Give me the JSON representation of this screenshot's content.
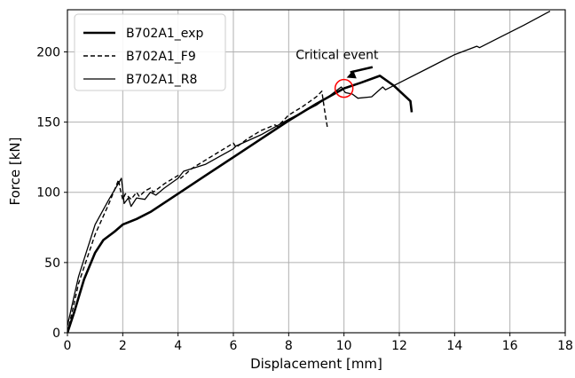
{
  "chart_data": {
    "type": "line",
    "title": "",
    "xlabel": "Displacement [mm]",
    "ylabel": "Force [kN]",
    "xlim": [
      0,
      18
    ],
    "ylim": [
      0,
      230
    ],
    "xticks": [
      0,
      2,
      4,
      6,
      8,
      10,
      12,
      14,
      16,
      18
    ],
    "yticks": [
      0,
      50,
      100,
      150,
      200
    ],
    "grid": true,
    "legend_position": "top-left",
    "series": [
      {
        "name": "B702A1_exp",
        "style": "solid-thick",
        "color": "#000000",
        "points": [
          [
            0,
            0
          ],
          [
            0.25,
            15
          ],
          [
            0.6,
            38
          ],
          [
            1.0,
            57
          ],
          [
            1.3,
            66
          ],
          [
            1.7,
            72
          ],
          [
            2.0,
            77
          ],
          [
            2.5,
            81
          ],
          [
            3.0,
            86
          ],
          [
            4.0,
            99
          ],
          [
            5.0,
            112
          ],
          [
            6.0,
            125
          ],
          [
            7.0,
            138
          ],
          [
            8.0,
            151
          ],
          [
            9.0,
            163
          ],
          [
            10.0,
            174
          ],
          [
            10.6,
            178
          ],
          [
            11.3,
            183
          ],
          [
            11.8,
            176
          ],
          [
            12.4,
            165
          ],
          [
            12.45,
            157
          ]
        ]
      },
      {
        "name": "B702A1_F9",
        "style": "dashed",
        "color": "#000000",
        "points": [
          [
            0,
            0
          ],
          [
            0.4,
            35
          ],
          [
            1.0,
            70
          ],
          [
            1.5,
            92
          ],
          [
            1.85,
            109
          ],
          [
            1.9,
            103
          ],
          [
            2.0,
            95
          ],
          [
            2.1,
            99
          ],
          [
            2.3,
            95
          ],
          [
            2.5,
            100
          ],
          [
            2.6,
            97
          ],
          [
            2.8,
            101
          ],
          [
            3.0,
            103
          ],
          [
            3.1,
            100
          ],
          [
            3.5,
            106
          ],
          [
            4.0,
            112
          ],
          [
            4.1,
            110
          ],
          [
            4.5,
            117
          ],
          [
            5.0,
            123
          ],
          [
            5.5,
            129
          ],
          [
            6.0,
            135
          ],
          [
            6.1,
            132
          ],
          [
            6.5,
            138
          ],
          [
            7.0,
            144
          ],
          [
            7.5,
            148
          ],
          [
            7.6,
            147
          ],
          [
            8.0,
            155
          ],
          [
            8.5,
            161
          ],
          [
            9.0,
            168
          ],
          [
            9.2,
            172
          ],
          [
            9.3,
            158
          ],
          [
            9.4,
            146
          ]
        ]
      },
      {
        "name": "B702A1_R8",
        "style": "solid-thin",
        "color": "#000000",
        "points": [
          [
            0,
            5
          ],
          [
            0.4,
            40
          ],
          [
            1.0,
            77
          ],
          [
            1.5,
            95
          ],
          [
            1.95,
            110
          ],
          [
            2.0,
            102
          ],
          [
            2.05,
            92
          ],
          [
            2.2,
            96
          ],
          [
            2.3,
            90
          ],
          [
            2.5,
            96
          ],
          [
            2.8,
            95
          ],
          [
            3.0,
            100
          ],
          [
            3.2,
            98
          ],
          [
            3.5,
            103
          ],
          [
            4.0,
            110
          ],
          [
            4.2,
            115
          ],
          [
            5.0,
            120
          ],
          [
            6.0,
            131
          ],
          [
            6.1,
            133
          ],
          [
            7.0,
            141
          ],
          [
            8.0,
            152
          ],
          [
            9.0,
            162
          ],
          [
            9.5,
            169
          ],
          [
            9.9,
            175
          ],
          [
            10.05,
            171
          ],
          [
            10.3,
            170
          ],
          [
            10.5,
            167
          ],
          [
            11.0,
            168
          ],
          [
            11.4,
            175
          ],
          [
            11.5,
            173
          ],
          [
            12.0,
            178
          ],
          [
            13.0,
            188
          ],
          [
            14.0,
            198
          ],
          [
            14.8,
            204
          ],
          [
            14.9,
            203
          ],
          [
            15.5,
            209
          ],
          [
            16.5,
            219
          ],
          [
            17.45,
            229
          ]
        ]
      }
    ],
    "annotations": [
      {
        "text": "Critical event",
        "x": 9.75,
        "y": 198,
        "arrow_to": [
          10.0,
          176
        ],
        "circle_at": [
          10.0,
          174
        ],
        "circle_color": "#ff0000"
      }
    ]
  }
}
